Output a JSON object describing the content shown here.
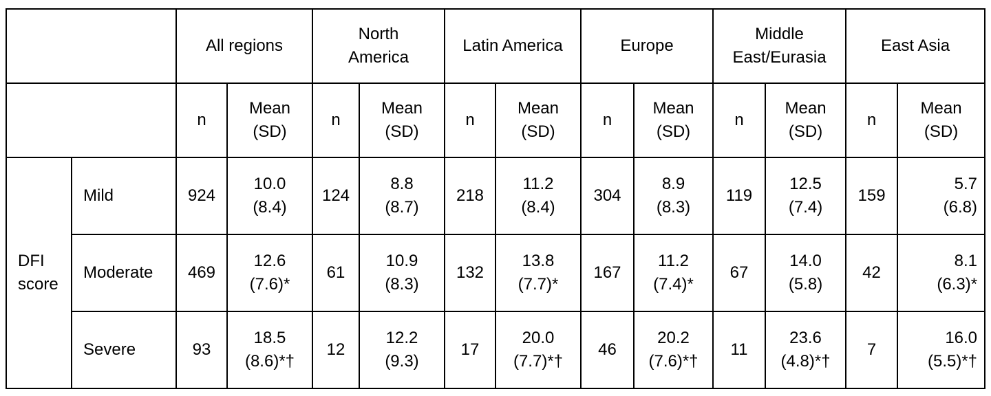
{
  "table": {
    "regions": [
      {
        "line1": "All regions",
        "line2": ""
      },
      {
        "line1": "North",
        "line2": "America"
      },
      {
        "line1": "Latin America",
        "line2": ""
      },
      {
        "line1": "Europe",
        "line2": ""
      },
      {
        "line1": "Middle",
        "line2": "East/Eurasia"
      },
      {
        "line1": "East Asia",
        "line2": ""
      }
    ],
    "sub_headers": {
      "n": "n",
      "mean_line1": "Mean",
      "mean_line2": "(SD)"
    },
    "group_label": {
      "line1": "DFI",
      "line2": "score"
    },
    "rows": [
      {
        "label": "Mild",
        "cells": [
          {
            "n": "924",
            "mean": "10.0",
            "sd": "(8.4)"
          },
          {
            "n": "124",
            "mean": "8.8",
            "sd": "(8.7)"
          },
          {
            "n": "218",
            "mean": "11.2",
            "sd": "(8.4)"
          },
          {
            "n": "304",
            "mean": "8.9",
            "sd": "(8.3)"
          },
          {
            "n": "119",
            "mean": "12.5",
            "sd": "(7.4)"
          },
          {
            "n": "159",
            "mean": "5.7",
            "sd": "(6.8)"
          }
        ]
      },
      {
        "label": "Moderate",
        "cells": [
          {
            "n": "469",
            "mean": "12.6",
            "sd": "(7.6)*"
          },
          {
            "n": "61",
            "mean": "10.9",
            "sd": "(8.3)"
          },
          {
            "n": "132",
            "mean": "13.8",
            "sd": "(7.7)*"
          },
          {
            "n": "167",
            "mean": "11.2",
            "sd": "(7.4)*"
          },
          {
            "n": "67",
            "mean": "14.0",
            "sd": "(5.8)"
          },
          {
            "n": "42",
            "mean": "8.1",
            "sd": "(6.3)*"
          }
        ]
      },
      {
        "label": "Severe",
        "cells": [
          {
            "n": "93",
            "mean": "18.5",
            "sd": "(8.6)*†"
          },
          {
            "n": "12",
            "mean": "12.2",
            "sd": "(9.3)"
          },
          {
            "n": "17",
            "mean": "20.0",
            "sd": "(7.7)*†"
          },
          {
            "n": "46",
            "mean": "20.2",
            "sd": "(7.6)*†"
          },
          {
            "n": "11",
            "mean": "23.6",
            "sd": "(4.8)*†"
          },
          {
            "n": "7",
            "mean": "16.0",
            "sd": "(5.5)*†"
          }
        ]
      }
    ]
  }
}
